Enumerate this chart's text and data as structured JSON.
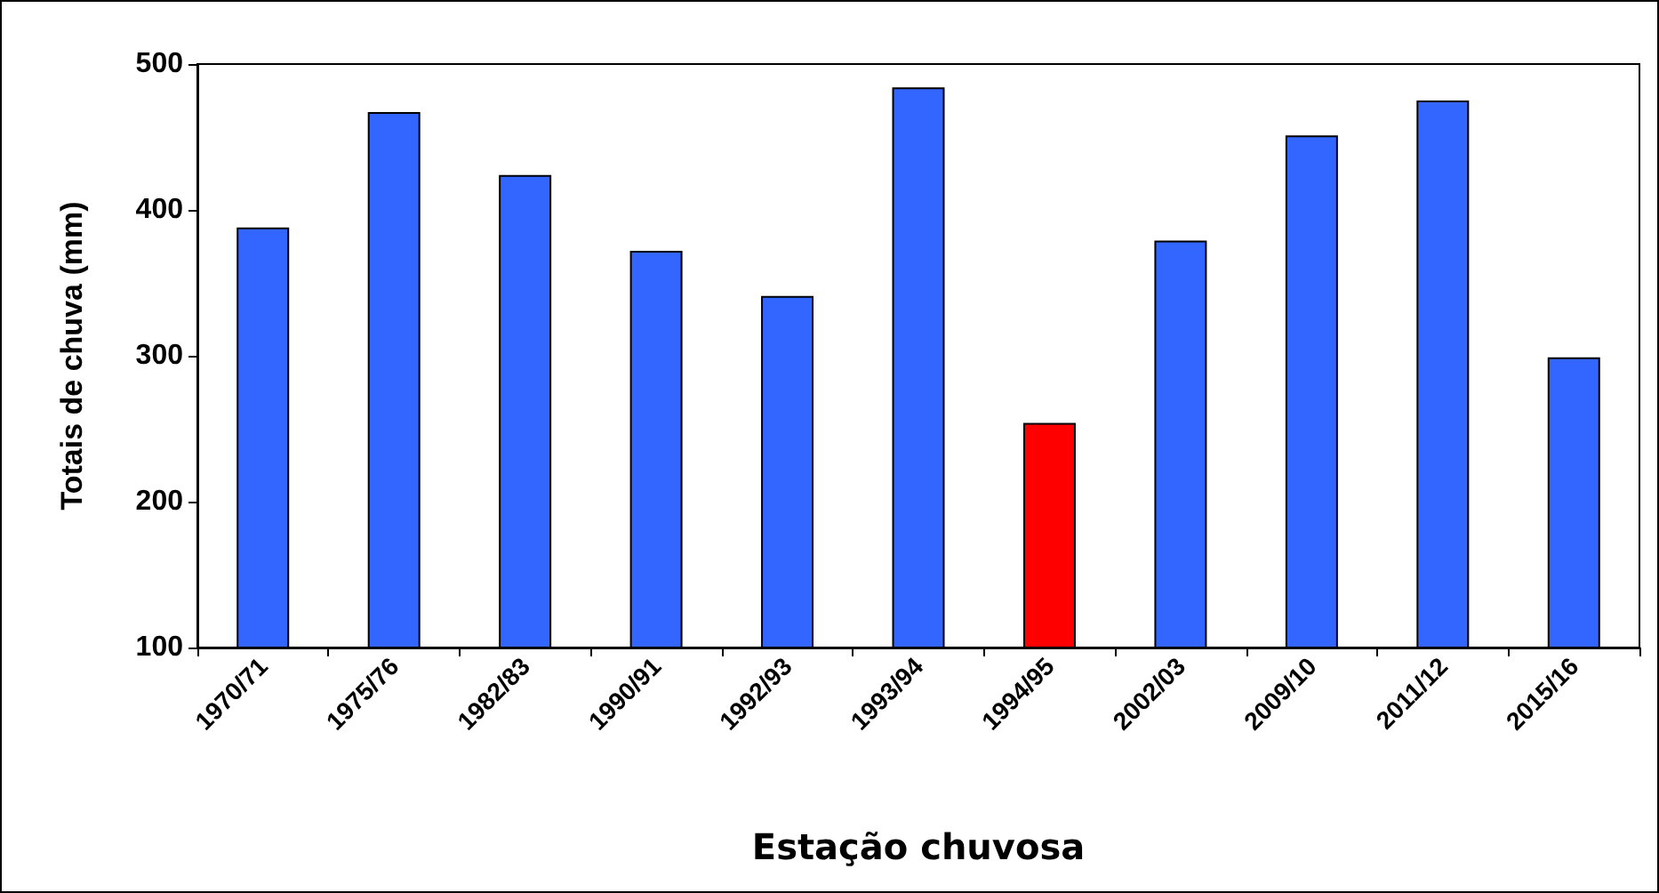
{
  "chart_data": {
    "type": "bar",
    "xlabel": "Estação chuvosa",
    "ylabel": "Totais de chuva (mm)",
    "categories": [
      "1970/71",
      "1975/76",
      "1982/83",
      "1990/91",
      "1992/93",
      "1993/94",
      "1994/95",
      "2002/03",
      "2009/10",
      "2011/12",
      "2015/16"
    ],
    "values": [
      388,
      467,
      424,
      372,
      341,
      484,
      254,
      379,
      451,
      475,
      299
    ],
    "colors": [
      "#3366ff",
      "#3366ff",
      "#3366ff",
      "#3366ff",
      "#3366ff",
      "#3366ff",
      "#ff0000",
      "#3366ff",
      "#3366ff",
      "#3366ff",
      "#3366ff"
    ],
    "ylim": [
      100,
      500
    ],
    "yticks": [
      100,
      200,
      300,
      400,
      500
    ],
    "grid": false
  }
}
